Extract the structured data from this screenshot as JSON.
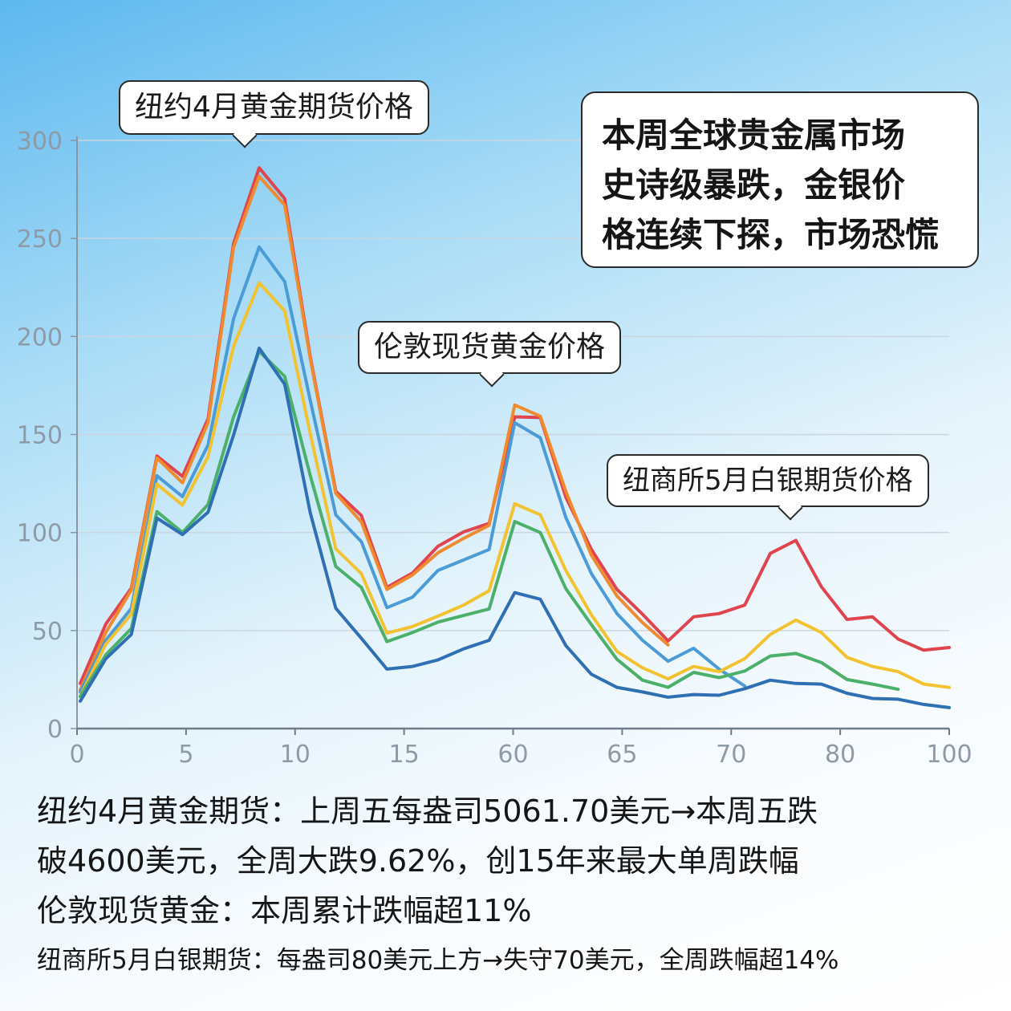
{
  "chart_data": {
    "type": "line",
    "x_ticks": [
      "0",
      "5",
      "10",
      "15",
      "60",
      "65",
      "70",
      "80",
      "100"
    ],
    "y_ticks": [
      "0",
      "50",
      "100",
      "150",
      "200",
      "250",
      "300"
    ],
    "ylim": [
      0,
      300
    ],
    "grid": "horizontal",
    "callouts": {
      "gold_ny": "纽约4月黄金期货价格",
      "gold_london": "伦敦现货黄金价格",
      "silver_comex": "纽商所5月白银期货价格"
    },
    "series": [
      {
        "color": "#e0444e",
        "values": [
          22,
          53,
          72,
          140,
          128,
          158,
          248,
          285,
          270,
          190,
          122,
          108,
          72,
          80,
          92,
          100,
          105,
          160,
          158,
          118,
          92,
          70,
          58,
          45,
          58,
          58,
          63,
          90,
          95,
          72,
          56,
          58,
          45,
          40,
          42
        ]
      },
      {
        "color": "#f08a2e",
        "values": [
          20,
          50,
          70,
          138,
          126,
          155,
          245,
          282,
          268,
          188,
          120,
          106,
          70,
          78,
          90,
          98,
          103,
          165,
          160,
          120,
          88,
          68,
          55,
          42
        ]
      },
      {
        "color": "#4b9bd6",
        "values": [
          18,
          45,
          62,
          128,
          118,
          145,
          210,
          245,
          228,
          168,
          108,
          95,
          62,
          68,
          80,
          86,
          92,
          155,
          148,
          108,
          80,
          58,
          45,
          35,
          40,
          30,
          22
        ]
      },
      {
        "color": "#f2c230",
        "values": [
          17,
          42,
          58,
          125,
          115,
          138,
          195,
          228,
          212,
          150,
          92,
          80,
          48,
          52,
          58,
          62,
          70,
          115,
          110,
          80,
          58,
          40,
          30,
          25,
          32,
          30,
          35,
          48,
          56,
          48,
          36,
          32,
          30,
          22,
          21
        ]
      },
      {
        "color": "#4cb06a",
        "values": [
          16,
          38,
          52,
          110,
          100,
          115,
          158,
          192,
          180,
          130,
          82,
          72,
          45,
          48,
          54,
          58,
          62,
          105,
          100,
          72,
          52,
          35,
          25,
          22,
          28,
          26,
          30,
          36,
          38,
          34,
          26,
          22,
          20
        ]
      },
      {
        "color": "#2f6fb3",
        "values": [
          15,
          35,
          48,
          108,
          98,
          110,
          150,
          195,
          175,
          110,
          62,
          45,
          30,
          32,
          36,
          40,
          45,
          70,
          65,
          42,
          28,
          22,
          18,
          16,
          18,
          16,
          20,
          25,
          24,
          22,
          18,
          16,
          14,
          12,
          11
        ]
      }
    ]
  },
  "headline": {
    "line1": "本周全球贵金属市场",
    "line2": "史诗级暴跌，金银价",
    "line3": "格连续下探，市场恐慌"
  },
  "notes": {
    "gold_ny_line1": "纽约4月黄金期货：上周五每盎司5061.70美元→本周五跌",
    "gold_ny_line2": "破4600美元，全周大跌9.62%，创15年来最大单周跌幅",
    "gold_london": "伦敦现货黄金：本周累计跌幅超11%",
    "silver": "纽商所5月白银期货：每盎司80美元上方→失守70美元，全周跌幅超14%"
  }
}
